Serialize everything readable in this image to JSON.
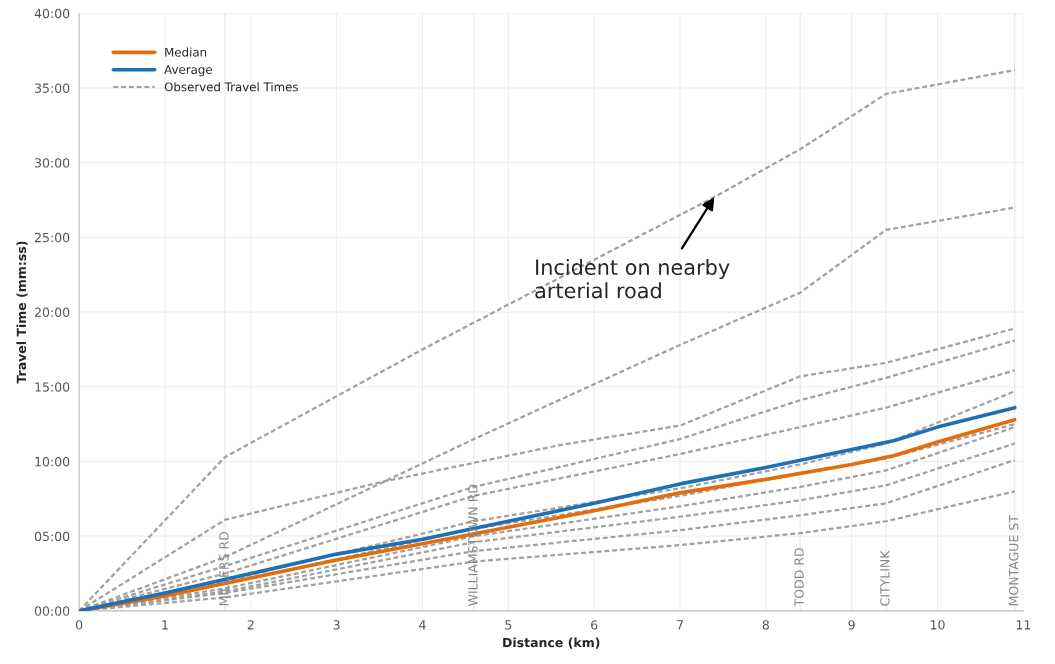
{
  "chart_data": {
    "type": "line",
    "xlabel": "Distance (km)",
    "ylabel": "Travel Time (mm:ss)",
    "xlim": [
      0,
      11
    ],
    "xticks": [
      0,
      1,
      2,
      3,
      4,
      5,
      6,
      7,
      8,
      9,
      10,
      11
    ],
    "ylim": [
      0,
      40
    ],
    "yticks": [
      {
        "value": 0,
        "label": "00:00"
      },
      {
        "value": 5,
        "label": "05:00"
      },
      {
        "value": 10,
        "label": "10:00"
      },
      {
        "value": 15,
        "label": "15:00"
      },
      {
        "value": 20,
        "label": "20:00"
      },
      {
        "value": 25,
        "label": "25:00"
      },
      {
        "value": 30,
        "label": "30:00"
      },
      {
        "value": 35,
        "label": "35:00"
      },
      {
        "value": 40,
        "label": "40:00"
      }
    ],
    "grid": true,
    "legend": "top left",
    "series": [
      {
        "name": "Observed Travel Times",
        "color": "#a0a0a0",
        "line_style": "dashed",
        "x": [
          0,
          1.7,
          4,
          7.4,
          8.4,
          9.4,
          10.9
        ],
        "values": [
          0,
          10.3,
          17.5,
          27.7,
          30.9,
          34.6,
          36.2
        ]
      },
      {
        "color": "#a0a0a0",
        "line_style": "dashed",
        "x": [
          0,
          1.7,
          4.6,
          7,
          8.4,
          9.4,
          10.9
        ],
        "values": [
          0,
          3.6,
          11.5,
          17.8,
          21.3,
          25.5,
          27.0
        ]
      },
      {
        "color": "#a0a0a0",
        "line_style": "dashed",
        "x": [
          0,
          1.7,
          3.5,
          5.6,
          7,
          8.4,
          9.4,
          10.9
        ],
        "values": [
          0,
          6.1,
          8.6,
          11.1,
          12.4,
          15.7,
          16.6,
          18.9
        ]
      },
      {
        "color": "#a0a0a0",
        "line_style": "dashed",
        "x": [
          0,
          1.7,
          4.6,
          7,
          8.4,
          9.4,
          10.9
        ],
        "values": [
          0,
          3.0,
          8.3,
          11.5,
          14.1,
          15.6,
          18.1
        ]
      },
      {
        "color": "#a0a0a0",
        "line_style": "dashed",
        "x": [
          0,
          1.7,
          4.6,
          7,
          8.4,
          9.4,
          10.9
        ],
        "values": [
          0,
          2.5,
          7.7,
          10.5,
          12.3,
          13.6,
          16.1
        ]
      },
      {
        "color": "#a0a0a0",
        "line_style": "dashed",
        "x": [
          0,
          1.7,
          4.6,
          7,
          8.4,
          9.4,
          10.9
        ],
        "values": [
          0,
          2.0,
          6.0,
          8.2,
          9.8,
          11.2,
          14.7
        ]
      },
      {
        "color": "#a0a0a0",
        "line_style": "dashed",
        "x": [
          0,
          1.7,
          4.6,
          7,
          8.4,
          9.4,
          10.9
        ],
        "values": [
          0,
          1.8,
          5.5,
          7.7,
          9.2,
          10.2,
          12.5
        ]
      },
      {
        "color": "#a0a0a0",
        "line_style": "dashed",
        "x": [
          0,
          1.7,
          4.6,
          7,
          8.4,
          9.4,
          10.9
        ],
        "values": [
          0,
          1.5,
          5.0,
          7.0,
          8.3,
          9.4,
          12.3
        ]
      },
      {
        "color": "#a0a0a0",
        "line_style": "dashed",
        "x": [
          0,
          1.7,
          4.6,
          7,
          8.4,
          9.4,
          10.9
        ],
        "values": [
          0,
          1.3,
          4.6,
          6.3,
          7.4,
          8.4,
          11.2
        ]
      },
      {
        "color": "#a0a0a0",
        "line_style": "dashed",
        "x": [
          0,
          1.7,
          4.6,
          7,
          8.4,
          9.4,
          10.9
        ],
        "values": [
          0,
          1.2,
          4.0,
          5.4,
          6.4,
          7.2,
          10.1
        ]
      },
      {
        "color": "#a0a0a0",
        "line_style": "dashed",
        "x": [
          0,
          1.7,
          4.6,
          7,
          8.4,
          9.4,
          10.9
        ],
        "values": [
          0,
          0.9,
          3.3,
          4.4,
          5.2,
          6.0,
          8.0
        ]
      },
      {
        "name": "Median",
        "color": "#e46c0a",
        "line_style": "solid",
        "x": [
          0,
          1,
          2,
          3,
          4,
          5,
          6,
          7,
          8,
          9,
          9.5,
          10,
          10.9
        ],
        "values": [
          0,
          1.0,
          2.2,
          3.4,
          4.5,
          5.6,
          6.7,
          7.9,
          8.8,
          9.8,
          10.4,
          11.3,
          12.8
        ]
      },
      {
        "name": "Average",
        "color": "#1f6fb5",
        "line_style": "solid",
        "x": [
          0,
          1,
          2,
          3,
          4,
          5,
          6,
          7,
          8,
          9,
          9.5,
          10,
          10.9
        ],
        "values": [
          0,
          1.2,
          2.5,
          3.8,
          4.8,
          6.0,
          7.2,
          8.5,
          9.6,
          10.8,
          11.4,
          12.3,
          13.6
        ]
      }
    ],
    "annotations": [
      {
        "text": "Incident on nearby\narterial road",
        "x": 7.4,
        "y": 27.7
      }
    ],
    "ref_lines": [
      {
        "axis": "x",
        "value": 1.7,
        "label": "MILLERS RD",
        "color": "#e6e6e6"
      },
      {
        "axis": "x",
        "value": 4.6,
        "label": "WILLIAMSTOWN RD",
        "color": "#e6e6e6"
      },
      {
        "axis": "x",
        "value": 8.4,
        "label": "TODD RD",
        "color": "#e6e6e6"
      },
      {
        "axis": "x",
        "value": 9.4,
        "label": "CITYLINK",
        "color": "#e6e6e6"
      },
      {
        "axis": "x",
        "value": 10.9,
        "label": "MONTAGUE ST",
        "color": "#e6e6e6"
      }
    ]
  }
}
